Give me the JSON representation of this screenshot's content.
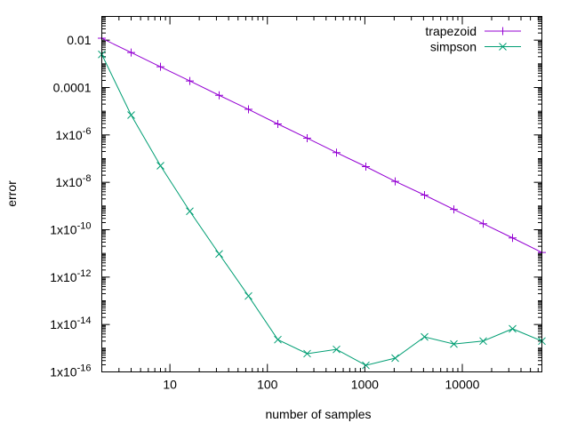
{
  "chart_data": {
    "type": "line",
    "title": "",
    "xlabel": "number of samples",
    "ylabel": "error",
    "xscale": "log",
    "yscale": "log",
    "xlim": [
      2,
      65536
    ],
    "ylim": [
      1e-16,
      0.1
    ],
    "grid": false,
    "legend_position": "top-right",
    "xticks": [
      {
        "value": 10,
        "label": "10"
      },
      {
        "value": 100,
        "label": "100"
      },
      {
        "value": 1000,
        "label": "1000"
      },
      {
        "value": 10000,
        "label": "10000"
      }
    ],
    "yticks": [
      {
        "value": 0.01,
        "base": "0.01",
        "exp": ""
      },
      {
        "value": 0.0001,
        "base": "0.0001",
        "exp": ""
      },
      {
        "value": 1e-06,
        "base": "1x10",
        "exp": "-6"
      },
      {
        "value": 1e-08,
        "base": "1x10",
        "exp": "-8"
      },
      {
        "value": 1e-10,
        "base": "1x10",
        "exp": "-10"
      },
      {
        "value": 1e-12,
        "base": "1x10",
        "exp": "-12"
      },
      {
        "value": 1e-14,
        "base": "1x10",
        "exp": "-14"
      },
      {
        "value": 1e-16,
        "base": "1x10",
        "exp": "-16"
      }
    ],
    "x": [
      2,
      4,
      8,
      16,
      32,
      64,
      128,
      256,
      512,
      1024,
      2048,
      4096,
      8192,
      16384,
      32768,
      65536
    ],
    "series": [
      {
        "name": "trapezoid",
        "color": "#9400d3",
        "marker": "plus",
        "values": [
          0.012,
          0.003,
          0.00075,
          0.00019,
          4.7e-05,
          1.2e-05,
          2.9e-06,
          7.3e-07,
          1.8e-07,
          4.6e-08,
          1.1e-08,
          2.9e-09,
          7.2e-10,
          1.8e-10,
          4.5e-11,
          1.1e-11
        ]
      },
      {
        "name": "simpson",
        "color": "#009e73",
        "marker": "cross",
        "values": [
          0.0025,
          6.9e-06,
          5e-08,
          6e-10,
          9.5e-12,
          1.6e-13,
          2.3e-15,
          5.9e-16,
          8.9e-16,
          1.9e-16,
          3.8e-16,
          3e-15,
          1.5e-15,
          2e-15,
          6.6e-15,
          2e-15
        ]
      }
    ]
  }
}
